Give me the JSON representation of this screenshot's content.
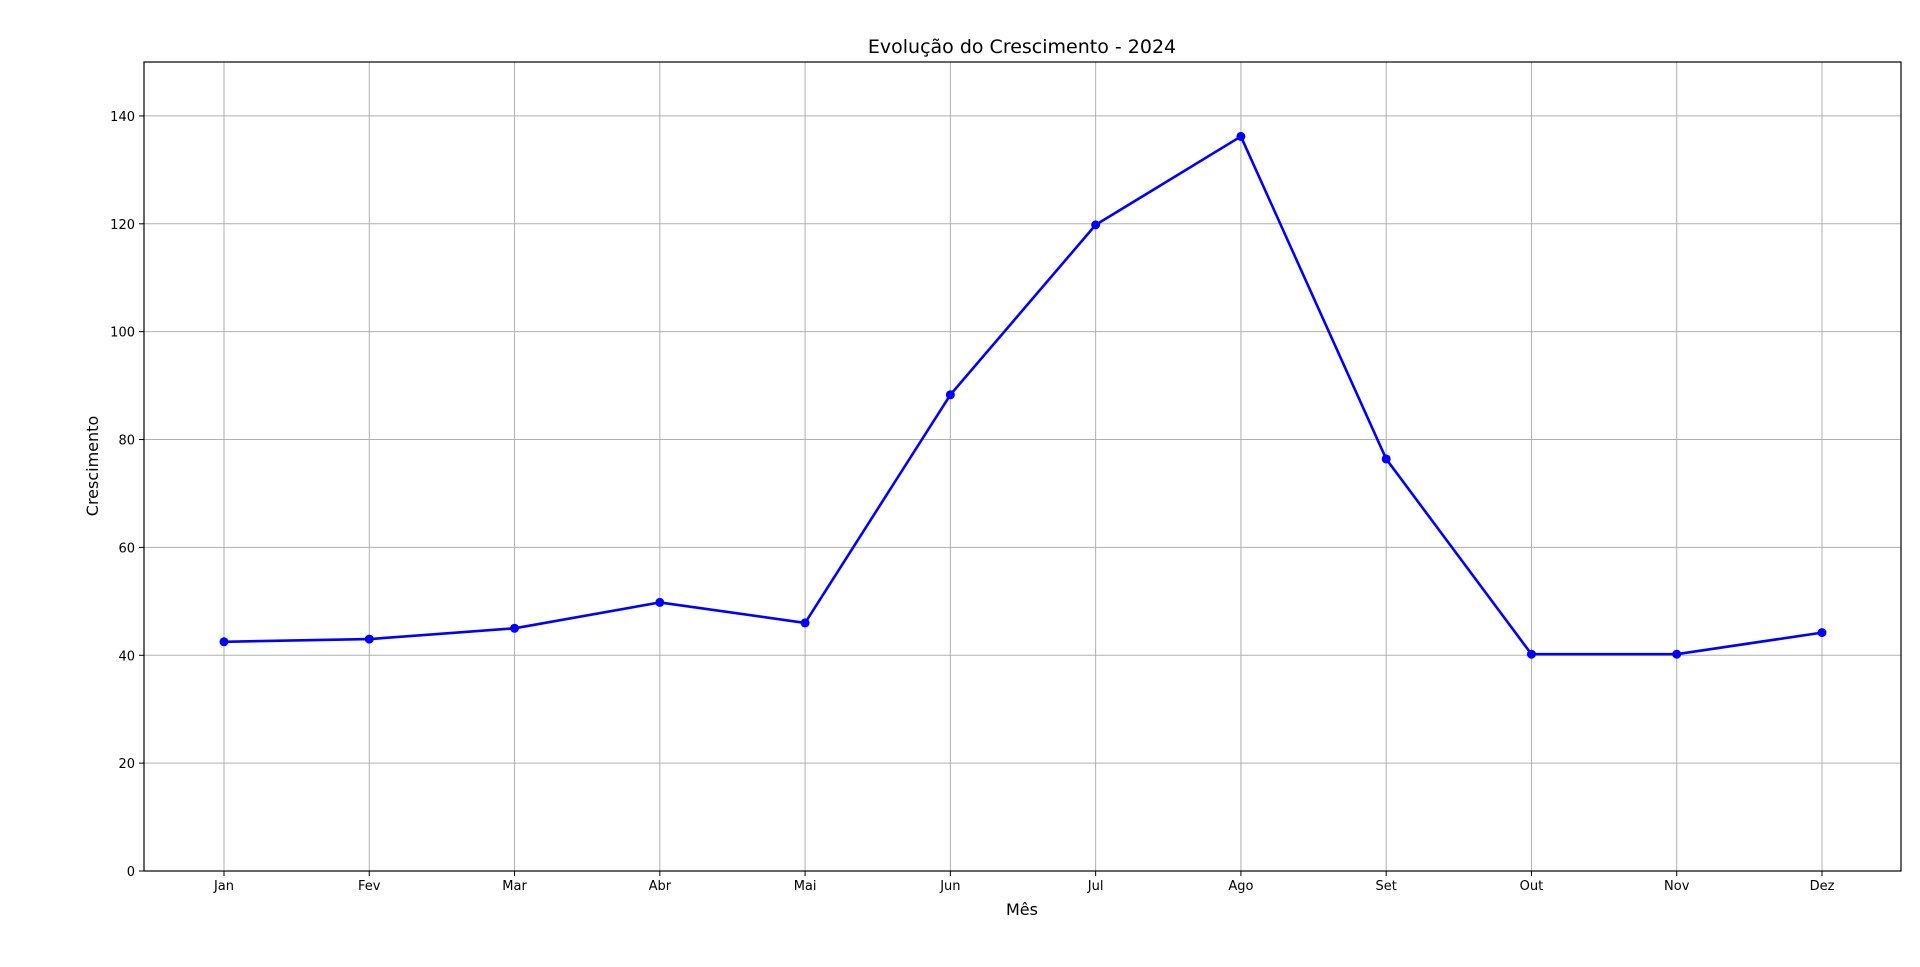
{
  "chart_data": {
    "type": "line",
    "title": "Evolução do Crescimento - 2024",
    "xlabel": "Mês",
    "ylabel": "Crescimento",
    "categories": [
      "Jan",
      "Fev",
      "Mar",
      "Abr",
      "Mai",
      "Jun",
      "Jul",
      "Ago",
      "Set",
      "Out",
      "Nov",
      "Dez"
    ],
    "series": [
      {
        "values": [
          42.5,
          43.0,
          45.0,
          49.8,
          46.0,
          88.3,
          119.8,
          136.2,
          76.4,
          40.2,
          40.2,
          44.2
        ],
        "color": "#0000ff",
        "marker": "circle"
      }
    ],
    "ylim": [
      0,
      150
    ],
    "yticks": [
      0,
      20,
      40,
      60,
      80,
      100,
      120,
      140
    ],
    "grid": true,
    "legend": "none"
  }
}
